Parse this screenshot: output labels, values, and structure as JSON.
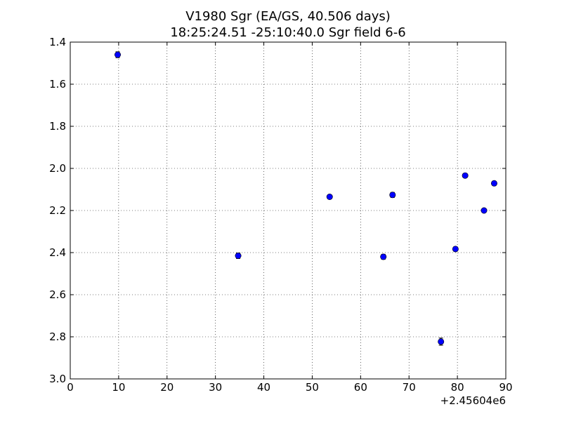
{
  "chart_data": {
    "type": "scatter",
    "title": "V1980 Sgr (EA/GS, 40.506 days)",
    "subtitle": "18:25:24.51 -25:10:40.0 Sgr field 6-6",
    "xlabel": "",
    "ylabel": "",
    "x_offset_label": "+2.45604e6",
    "xlim": [
      0,
      90
    ],
    "ylim": [
      1.4,
      3.0
    ],
    "y_inverted": true,
    "grid": true,
    "grid_style": "dotted",
    "x_ticks": [
      0,
      10,
      20,
      30,
      40,
      50,
      60,
      70,
      80,
      90
    ],
    "x_tick_labels": [
      "0",
      "10",
      "20",
      "30",
      "40",
      "50",
      "60",
      "70",
      "80",
      "90"
    ],
    "y_ticks": [
      1.4,
      1.6,
      1.8,
      2.0,
      2.2,
      2.4,
      2.6,
      2.8,
      3.0
    ],
    "y_tick_labels": [
      "1.4",
      "1.6",
      "1.8",
      "2.0",
      "2.2",
      "2.4",
      "2.6",
      "2.8",
      "3.0"
    ],
    "series": [
      {
        "color": "#0000ff",
        "points": [
          {
            "x": 9.8,
            "y": 1.46,
            "err": 0.014
          },
          {
            "x": 34.7,
            "y": 2.415,
            "err": 0.013
          },
          {
            "x": 53.6,
            "y": 2.135,
            "err": 0.01
          },
          {
            "x": 64.7,
            "y": 2.42,
            "err": 0.012
          },
          {
            "x": 66.6,
            "y": 2.126,
            "err": 0.012
          },
          {
            "x": 76.6,
            "y": 2.823,
            "err": 0.017
          },
          {
            "x": 79.6,
            "y": 2.383,
            "err": 0.01
          },
          {
            "x": 81.6,
            "y": 2.034,
            "err": 0.008
          },
          {
            "x": 85.5,
            "y": 2.2,
            "err": 0.008
          },
          {
            "x": 87.6,
            "y": 2.071,
            "err": 0.008
          }
        ]
      }
    ]
  }
}
